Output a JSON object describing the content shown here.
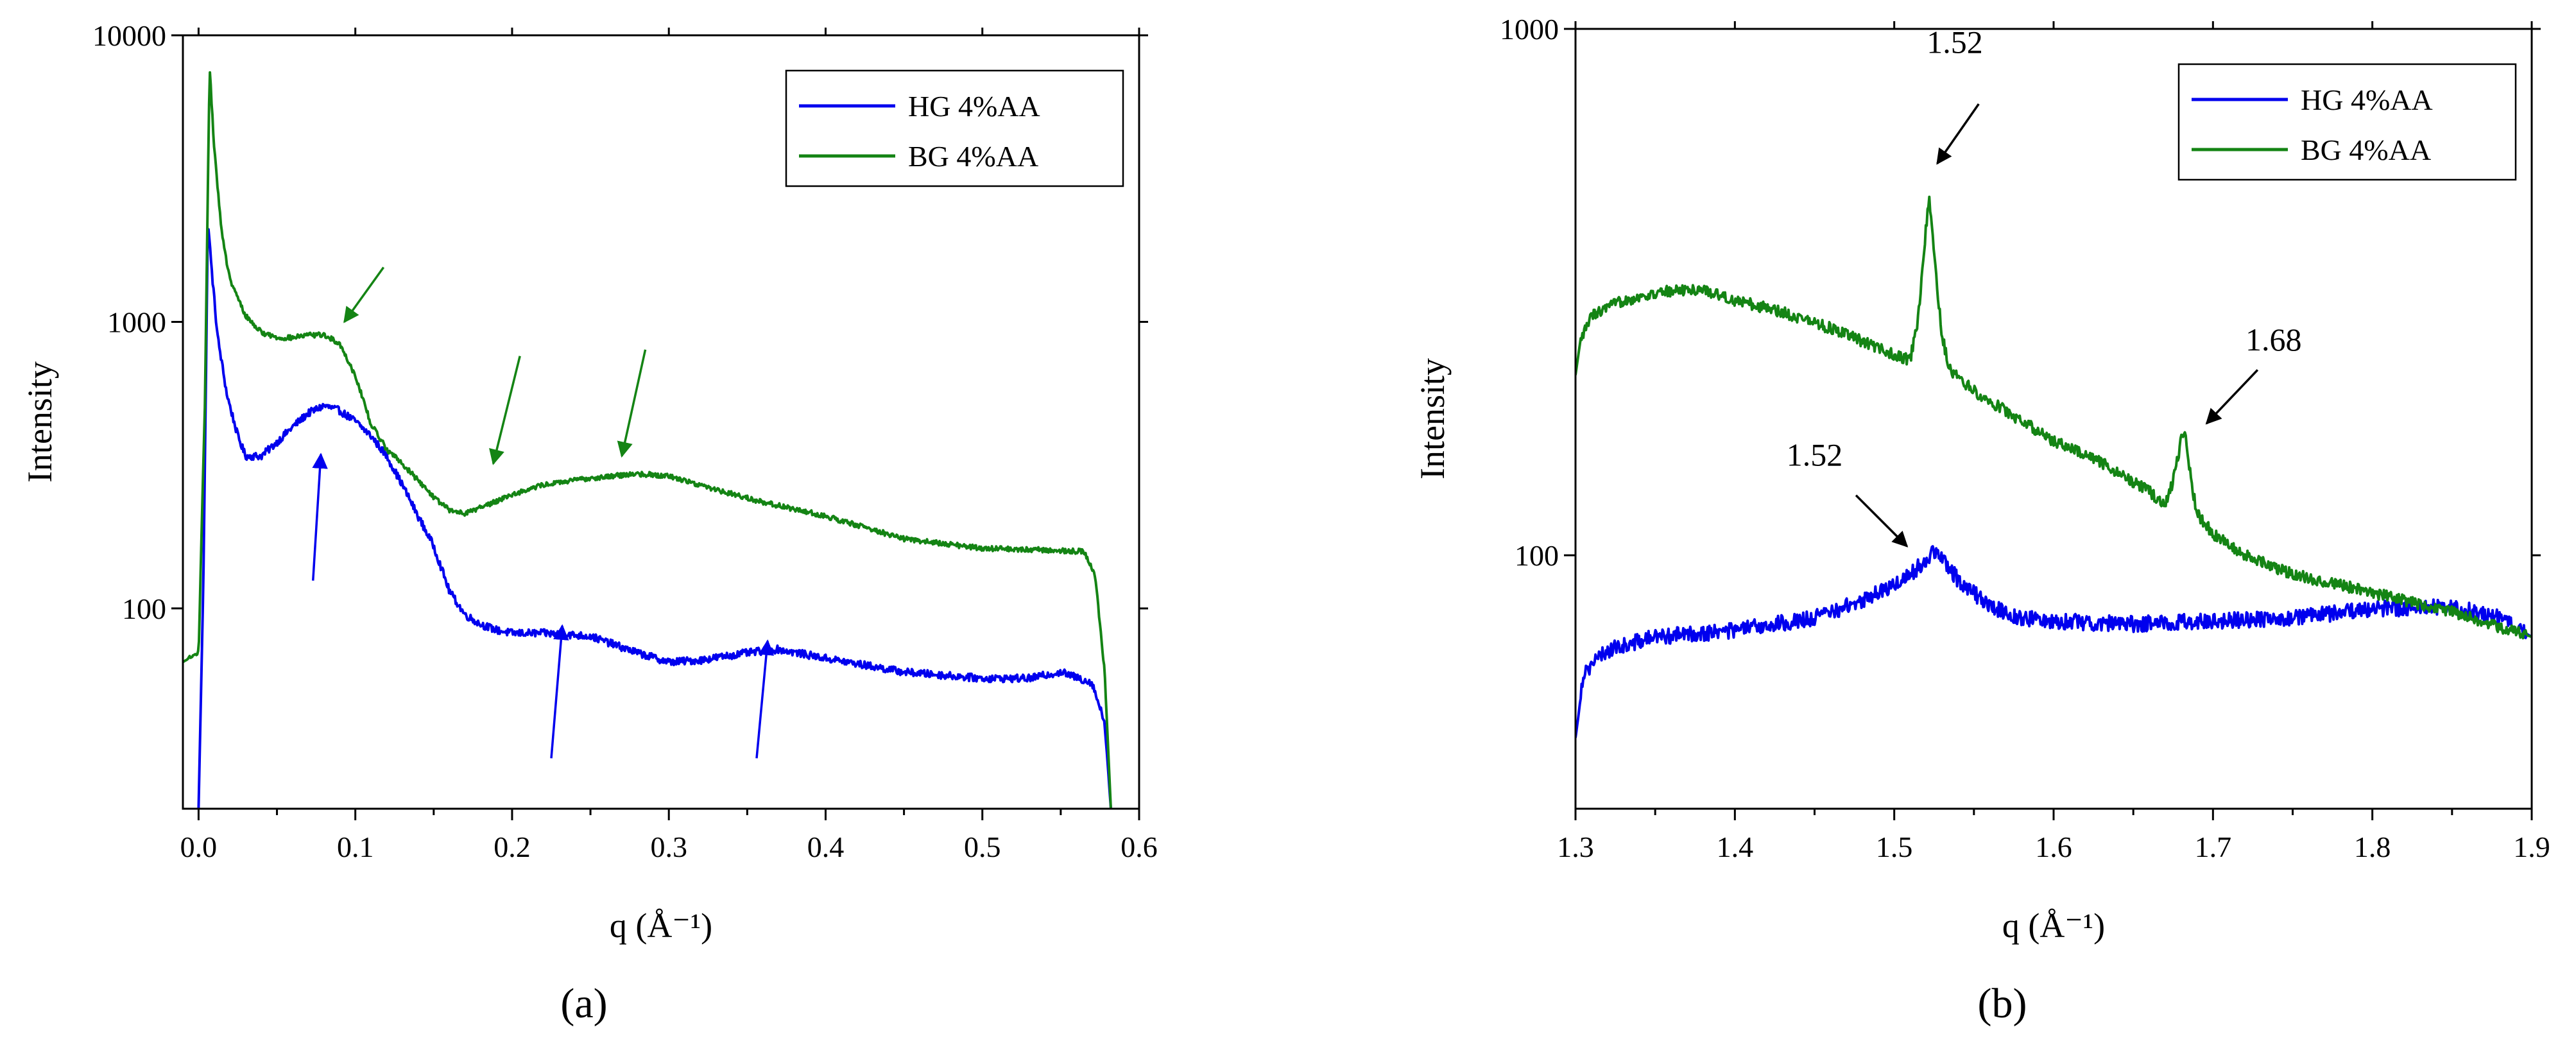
{
  "figure": {
    "panel_labels": [
      "(a)",
      "(b)"
    ]
  },
  "colors": {
    "hg": "#0000ee",
    "bg": "#148414",
    "axis": "#000000",
    "annotation": "#000000"
  },
  "chart_data": [
    {
      "id": "a",
      "type": "line",
      "yscale": "log",
      "xlabel": "q (Å⁻¹)",
      "ylabel": "Intensity",
      "xlim": [
        -0.01,
        0.6
      ],
      "ylim": [
        20,
        10000
      ],
      "xticks": [
        0.0,
        0.1,
        0.2,
        0.3,
        0.4,
        0.5,
        0.6
      ],
      "xtick_labels": [
        "0.0",
        "0.1",
        "0.2",
        "0.3",
        "0.4",
        "0.5",
        "0.6"
      ],
      "yticks": [
        100,
        1000,
        10000
      ],
      "ytick_labels": [
        "100",
        "1000",
        "10000"
      ],
      "legend": {
        "position": "top-right",
        "entries": [
          "HG 4%AA",
          "BG 4%AA"
        ]
      },
      "series": [
        {
          "name": "HG 4%AA",
          "color_key": "hg",
          "noise": 0.03,
          "x": [
            0.0,
            0.003,
            0.006,
            0.008,
            0.012,
            0.018,
            0.025,
            0.03,
            0.04,
            0.05,
            0.06,
            0.07,
            0.08,
            0.09,
            0.1,
            0.11,
            0.12,
            0.13,
            0.14,
            0.15,
            0.16,
            0.17,
            0.18,
            0.19,
            0.2,
            0.22,
            0.25,
            0.28,
            0.3,
            0.32,
            0.35,
            0.37,
            0.4,
            0.45,
            0.5,
            0.53,
            0.55,
            0.57,
            0.578,
            0.582
          ],
          "y": [
            20,
            120,
            2300,
            1600,
            900,
            560,
            400,
            340,
            340,
            380,
            430,
            480,
            510,
            490,
            450,
            400,
            340,
            270,
            210,
            165,
            115,
            95,
            88,
            84,
            82,
            82,
            80,
            70,
            65,
            66,
            70,
            72,
            67,
            60,
            57,
            57,
            60,
            55,
            40,
            20
          ]
        },
        {
          "name": "BG 4%AA",
          "color_key": "bg",
          "noise": 0.02,
          "x": [
            -0.01,
            0.0,
            0.004,
            0.007,
            0.01,
            0.015,
            0.02,
            0.03,
            0.04,
            0.05,
            0.06,
            0.07,
            0.08,
            0.09,
            0.1,
            0.11,
            0.12,
            0.13,
            0.14,
            0.15,
            0.16,
            0.17,
            0.18,
            0.2,
            0.22,
            0.25,
            0.28,
            0.3,
            0.33,
            0.36,
            0.4,
            0.45,
            0.5,
            0.54,
            0.565,
            0.572,
            0.578,
            0.582
          ],
          "y": [
            65,
            70,
            500,
            7800,
            4000,
            2000,
            1400,
            1050,
            920,
            880,
            880,
            900,
            900,
            840,
            650,
            440,
            360,
            320,
            280,
            245,
            220,
            215,
            225,
            250,
            270,
            285,
            295,
            290,
            260,
            235,
            210,
            175,
            162,
            160,
            158,
            130,
            60,
            20
          ]
        }
      ],
      "annotations": [
        {
          "kind": "arrow",
          "color_key": "bg",
          "from": [
            0.118,
            1550
          ],
          "to": [
            0.093,
            1000
          ]
        },
        {
          "kind": "arrow",
          "color_key": "bg",
          "from": [
            0.205,
            760
          ],
          "to": [
            0.188,
            320
          ]
        },
        {
          "kind": "arrow",
          "color_key": "bg",
          "from": [
            0.285,
            800
          ],
          "to": [
            0.27,
            340
          ]
        },
        {
          "kind": "arrow",
          "color_key": "hg",
          "from": [
            0.073,
            125
          ],
          "to": [
            0.078,
            345
          ]
        },
        {
          "kind": "arrow",
          "color_key": "hg",
          "from": [
            0.225,
            30
          ],
          "to": [
            0.232,
            87
          ]
        },
        {
          "kind": "arrow",
          "color_key": "hg",
          "from": [
            0.356,
            30
          ],
          "to": [
            0.363,
            77
          ]
        }
      ]
    },
    {
      "id": "b",
      "type": "line",
      "yscale": "log",
      "xlabel": "q (Å⁻¹)",
      "ylabel": "Intensity",
      "xlim": [
        1.3,
        1.9
      ],
      "ylim": [
        33,
        1000
      ],
      "xticks": [
        1.3,
        1.4,
        1.5,
        1.6,
        1.7,
        1.8,
        1.9
      ],
      "xtick_labels": [
        "1.3",
        "1.4",
        "1.5",
        "1.6",
        "1.7",
        "1.8",
        "1.9"
      ],
      "yticks": [
        100,
        1000
      ],
      "ytick_labels": [
        "100",
        "1000"
      ],
      "legend": {
        "position": "top-right",
        "entries": [
          "HG 4%AA",
          "BG 4%AA"
        ]
      },
      "series": [
        {
          "name": "HG 4%AA",
          "color_key": "hg",
          "noise": 0.035,
          "x": [
            1.3,
            1.302,
            1.305,
            1.32,
            1.35,
            1.4,
            1.45,
            1.48,
            1.5,
            1.51,
            1.52,
            1.525,
            1.53,
            1.54,
            1.56,
            1.58,
            1.6,
            1.65,
            1.7,
            1.75,
            1.8,
            1.85,
            1.88,
            1.9
          ],
          "y": [
            45,
            50,
            60,
            66,
            70,
            72,
            76,
            82,
            88,
            92,
            98,
            102,
            98,
            90,
            80,
            76,
            75,
            74,
            75,
            76,
            79,
            80,
            76,
            70
          ]
        },
        {
          "name": "BG 4%AA",
          "color_key": "bg",
          "noise": 0.025,
          "x": [
            1.3,
            1.303,
            1.31,
            1.33,
            1.36,
            1.38,
            1.4,
            1.43,
            1.46,
            1.48,
            1.5,
            1.51,
            1.515,
            1.52,
            1.522,
            1.525,
            1.53,
            1.535,
            1.55,
            1.58,
            1.6,
            1.63,
            1.66,
            1.67,
            1.675,
            1.68,
            1.683,
            1.686,
            1.69,
            1.7,
            1.72,
            1.75,
            1.8,
            1.85,
            1.9
          ],
          "y": [
            220,
            255,
            285,
            305,
            318,
            320,
            305,
            290,
            270,
            255,
            240,
            235,
            280,
            420,
            480,
            370,
            260,
            225,
            205,
            180,
            165,
            150,
            132,
            125,
            138,
            165,
            170,
            140,
            120,
            110,
            100,
            92,
            85,
            78,
            70
          ]
        }
      ],
      "annotations": [
        {
          "kind": "arrow",
          "color_key": "annotation",
          "from": [
            1.553,
            720
          ],
          "to": [
            1.527,
            555
          ]
        },
        {
          "kind": "label",
          "text": "1.52",
          "at": [
            1.538,
            900
          ],
          "anchor": "middle"
        },
        {
          "kind": "arrow",
          "color_key": "annotation",
          "from": [
            1.728,
            225
          ],
          "to": [
            1.696,
            178
          ]
        },
        {
          "kind": "label",
          "text": "1.68",
          "at": [
            1.738,
            245
          ],
          "anchor": "middle"
        },
        {
          "kind": "arrow",
          "color_key": "annotation",
          "from": [
            1.476,
            130
          ],
          "to": [
            1.508,
            104
          ]
        },
        {
          "kind": "label",
          "text": "1.52",
          "at": [
            1.45,
            148
          ],
          "anchor": "middle"
        }
      ]
    }
  ]
}
